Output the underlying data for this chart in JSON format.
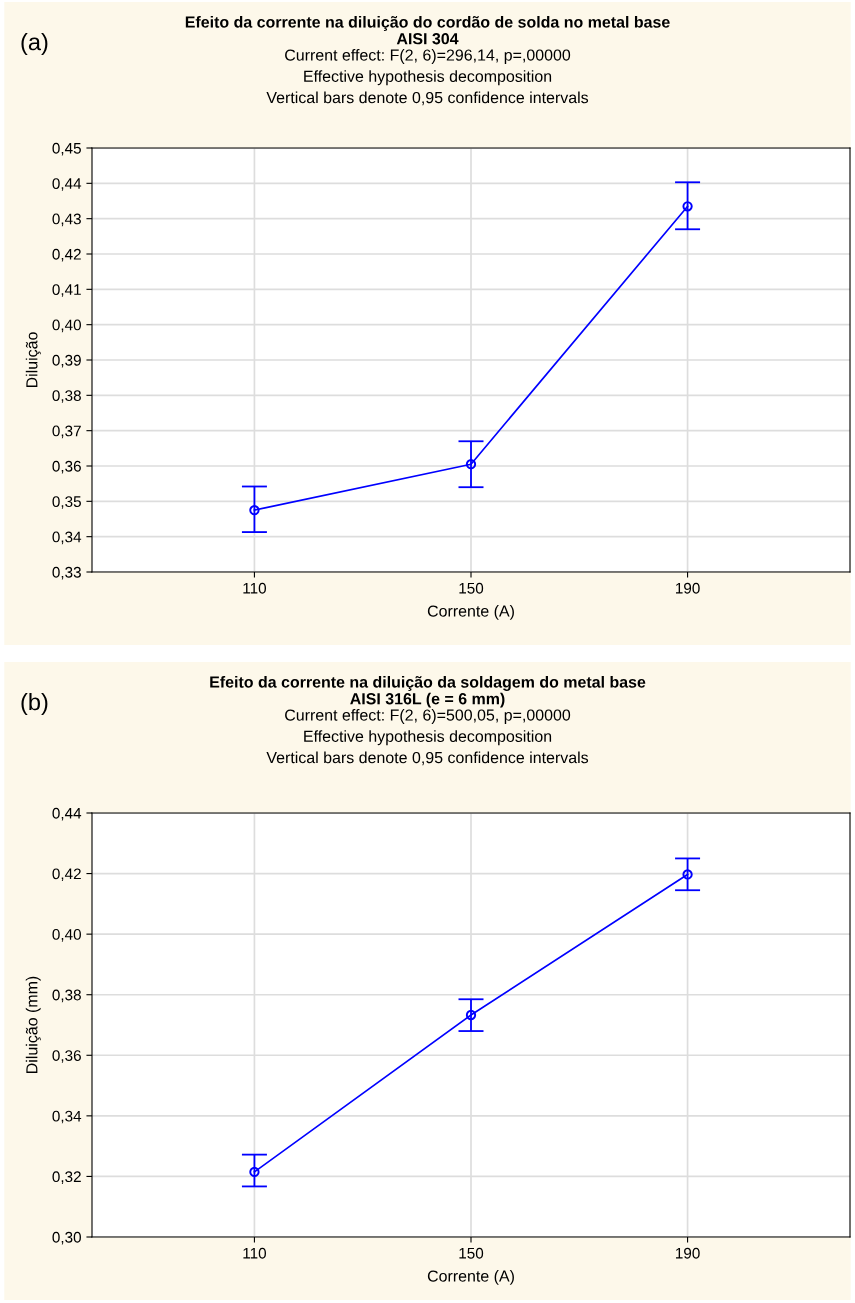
{
  "chart_data": [
    {
      "type": "line",
      "title": "Efeito da corrente na diluição do cordão de solda no metal base\nAISI 304",
      "subtitle": "Current effect: F(2, 6)=296,14, p=,00000\nEffective hypothesis decomposition\nVertical bars denote 0,95 confidence intervals",
      "xlabel": "Corrente (A)",
      "ylabel": "Diluição",
      "annotations": [
        "(a)"
      ],
      "categories": [
        "110",
        "150",
        "190"
      ],
      "series": [
        {
          "color": "#0000ff",
          "values": [
            0.3475,
            0.3605,
            0.4335
          ],
          "errors": [
            [
              0.3413,
              0.3542
            ],
            [
              0.354,
              0.367
            ],
            [
              0.427,
              0.4403
            ]
          ]
        }
      ],
      "ylim": [
        0.33,
        0.45
      ],
      "yticks": [
        {
          "value": 0.33,
          "label": "0,33"
        },
        {
          "value": 0.34,
          "label": "0,34"
        },
        {
          "value": 0.35,
          "label": "0,35"
        },
        {
          "value": 0.36,
          "label": "0,36"
        },
        {
          "value": 0.37,
          "label": "0,37"
        },
        {
          "value": 0.38,
          "label": "0,38"
        },
        {
          "value": 0.39,
          "label": "0,39"
        },
        {
          "value": 0.4,
          "label": "0,40"
        },
        {
          "value": 0.41,
          "label": "0,41"
        },
        {
          "value": 0.42,
          "label": "0,42"
        },
        {
          "value": 0.43,
          "label": "0,43"
        },
        {
          "value": 0.44,
          "label": "0,44"
        },
        {
          "value": 0.45,
          "label": "0,45"
        }
      ],
      "grid": true,
      "marker": "circle",
      "line_style": "solid"
    },
    {
      "type": "line",
      "title": "Efeito da corrente na diluição da soldagem do metal base\nAISI 316L (e = 6 mm)",
      "subtitle": "Current effect: F(2, 6)=500,05, p=,00000\nEffective hypothesis decomposition\nVertical bars denote 0,95 confidence intervals",
      "xlabel": "Corrente (A)",
      "ylabel": "Diluição (mm)",
      "annotations": [
        "(b)"
      ],
      "categories": [
        "110",
        "150",
        "190"
      ],
      "series": [
        {
          "color": "#0000ff",
          "values": [
            0.3215,
            0.3733,
            0.4197
          ],
          "errors": [
            [
              0.3167,
              0.3272
            ],
            [
              0.368,
              0.3785
            ],
            [
              0.4145,
              0.425
            ]
          ]
        }
      ],
      "ylim": [
        0.3,
        0.44
      ],
      "yticks": [
        {
          "value": 0.3,
          "label": "0,30"
        },
        {
          "value": 0.32,
          "label": "0,32"
        },
        {
          "value": 0.34,
          "label": "0,34"
        },
        {
          "value": 0.36,
          "label": "0,36"
        },
        {
          "value": 0.38,
          "label": "0,38"
        },
        {
          "value": 0.4,
          "label": "0,40"
        },
        {
          "value": 0.42,
          "label": "0,42"
        },
        {
          "value": 0.44,
          "label": "0,44"
        }
      ],
      "grid": true,
      "marker": "circle",
      "line_style": "solid"
    }
  ]
}
